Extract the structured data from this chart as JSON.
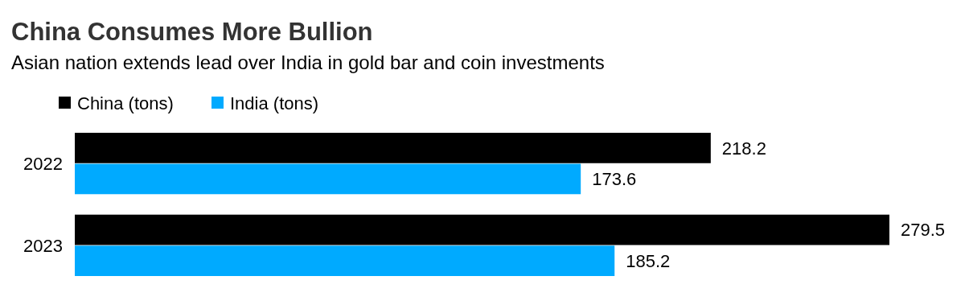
{
  "chart_data": {
    "type": "bar",
    "orientation": "horizontal",
    "title": "China Consumes More Bullion",
    "subtitle": "Asian nation extends lead over India in gold bar and coin investments",
    "categories": [
      "2022",
      "2023"
    ],
    "series": [
      {
        "name": "China (tons)",
        "color": "#000000",
        "values": [
          218.2,
          279.5
        ]
      },
      {
        "name": "India (tons)",
        "color": "#00aaff",
        "values": [
          173.6,
          185.2
        ]
      }
    ],
    "data_labels": true,
    "legend": "top left",
    "grid": false
  }
}
